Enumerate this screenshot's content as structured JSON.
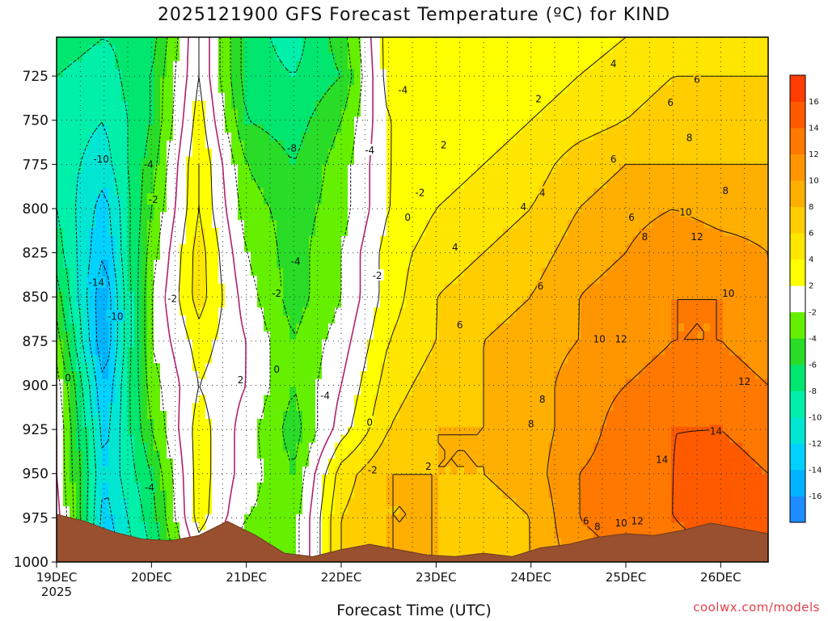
{
  "chart_data": {
    "type": "heatmap",
    "title": "2025121900 GFS Forecast Temperature (ºC) for KIND",
    "xlabel": "Forecast Time (UTC)",
    "ylabel": "",
    "x_ticks": [
      "19DEC",
      "20DEC",
      "21DEC",
      "22DEC",
      "23DEC",
      "24DEC",
      "25DEC",
      "26DEC"
    ],
    "x_tick_sublabel": "2025",
    "y_ticks": [
      725,
      750,
      775,
      800,
      825,
      850,
      875,
      900,
      925,
      950,
      975,
      1000
    ],
    "ylim": [
      1000,
      703
    ],
    "xlim": [
      0,
      7.5
    ],
    "grid": true,
    "colorbar": {
      "levels": [
        -18,
        -16,
        -14,
        -12,
        -10,
        -8,
        -6,
        -4,
        -2,
        2,
        4,
        6,
        8,
        10,
        12,
        14,
        16,
        18
      ],
      "labels": [
        "-16",
        "-14",
        "-12",
        "-10",
        "-8",
        "-6",
        "-4",
        "-2",
        "2",
        "4",
        "6",
        "8",
        "10",
        "12",
        "14",
        "16"
      ],
      "colors": [
        "#1e8cff",
        "#00b4ff",
        "#00d2ff",
        "#00e6d2",
        "#00f0aa",
        "#00e66e",
        "#28dc28",
        "#64f000",
        "#ffffff",
        "#ffff00",
        "#ffe600",
        "#ffcd00",
        "#ffaf00",
        "#ff9600",
        "#ff7800",
        "#ff5a00",
        "#ff3c00"
      ]
    },
    "time_axis": [
      0,
      0.5,
      1,
      1.5,
      2,
      2.5,
      3,
      3.5,
      4,
      4.5,
      5,
      5.5,
      6,
      6.5,
      7,
      7.5
    ],
    "pressure_levels": [
      1000,
      975,
      950,
      925,
      900,
      875,
      850,
      825,
      800,
      775,
      750,
      725,
      703
    ],
    "temperature": [
      [
        2,
        -14,
        -8,
        0,
        -4,
        -3,
        6,
        8,
        8,
        7,
        8,
        11,
        12,
        12,
        14,
        16
      ],
      [
        1,
        -13,
        -7,
        3,
        -2,
        -3,
        6,
        8,
        8,
        7,
        8,
        12,
        13,
        14,
        16,
        15
      ],
      [
        0,
        -12,
        -6,
        3,
        -1,
        -4,
        5,
        8,
        8,
        8,
        9,
        12,
        13,
        14,
        15,
        14
      ],
      [
        0,
        -13,
        -4,
        3,
        -1,
        -5,
        1,
        6,
        8,
        8,
        9,
        11,
        13,
        14,
        14,
        13
      ],
      [
        -1,
        -14,
        -3,
        2,
        0,
        -4,
        0,
        5,
        7,
        8,
        9,
        11,
        12,
        13,
        13,
        12
      ],
      [
        -3,
        -16,
        -2,
        3,
        0,
        -4,
        -1,
        4,
        6,
        8,
        9,
        10,
        11,
        12,
        12,
        11
      ],
      [
        -5,
        -16,
        -2,
        5,
        -1,
        -5,
        -2,
        3,
        6,
        7,
        8,
        10,
        11,
        12,
        12,
        10
      ],
      [
        -7,
        -14,
        -3,
        5,
        -2,
        -5,
        -2,
        3,
        5,
        6,
        7,
        9,
        10,
        12,
        11,
        10
      ],
      [
        -8,
        -13,
        -4,
        4,
        -3,
        -5,
        -3,
        2,
        4,
        5,
        6,
        8,
        9,
        10,
        9,
        9
      ],
      [
        -9,
        -11,
        -5,
        4,
        -4,
        -6,
        -3,
        2,
        3,
        4,
        5,
        7,
        8,
        8,
        8,
        8
      ],
      [
        -9,
        -10,
        -6,
        3,
        -6,
        -7,
        -4,
        2,
        3,
        3,
        4,
        5,
        6,
        7,
        7,
        7
      ],
      [
        -8,
        -9,
        -6,
        2,
        -7,
        -8,
        -6,
        3,
        2,
        3,
        3,
        4,
        5,
        6,
        6,
        6
      ],
      [
        -7,
        -8,
        -7,
        2,
        -7,
        -9,
        -5,
        3,
        2,
        2,
        3,
        3,
        4,
        5,
        5,
        5
      ]
    ],
    "surface_pressure": [
      973,
      977,
      983,
      987,
      988,
      985,
      977,
      985,
      995,
      997,
      993,
      990,
      993,
      996,
      997,
      995,
      997,
      992,
      990,
      986,
      984,
      985,
      982,
      978,
      981,
      984
    ],
    "contour_labels": [
      {
        "text": "-10",
        "t": 0.47,
        "p": 772
      },
      {
        "text": "-4",
        "t": 0.97,
        "p": 775
      },
      {
        "text": "-2",
        "t": 1.02,
        "p": 795
      },
      {
        "text": "-14",
        "t": 0.42,
        "p": 842
      },
      {
        "text": "-10",
        "t": 0.62,
        "p": 861
      },
      {
        "text": "0",
        "t": 0.12,
        "p": 896
      },
      {
        "text": "-2",
        "t": 1.22,
        "p": 851
      },
      {
        "text": "-4",
        "t": 0.98,
        "p": 958
      },
      {
        "text": "2",
        "t": 1.94,
        "p": 897
      },
      {
        "text": "-8",
        "t": 2.48,
        "p": 766
      },
      {
        "text": "-4",
        "t": 2.52,
        "p": 830
      },
      {
        "text": "-2",
        "t": 2.32,
        "p": 848
      },
      {
        "text": "0",
        "t": 2.32,
        "p": 891
      },
      {
        "text": "-4",
        "t": 2.83,
        "p": 906
      },
      {
        "text": "-4",
        "t": 3.3,
        "p": 767
      },
      {
        "text": "-2",
        "t": 3.38,
        "p": 838
      },
      {
        "text": "0",
        "t": 3.3,
        "p": 921
      },
      {
        "text": "-2",
        "t": 3.33,
        "p": 948
      },
      {
        "text": "-4",
        "t": 3.65,
        "p": 733
      },
      {
        "text": "-2",
        "t": 3.83,
        "p": 791
      },
      {
        "text": "0",
        "t": 3.7,
        "p": 805
      },
      {
        "text": "2",
        "t": 3.92,
        "p": 946
      },
      {
        "text": "2",
        "t": 4.08,
        "p": 764
      },
      {
        "text": "4",
        "t": 4.2,
        "p": 822
      },
      {
        "text": "6",
        "t": 4.25,
        "p": 866
      },
      {
        "text": "2",
        "t": 5.08,
        "p": 738
      },
      {
        "text": "4",
        "t": 4.92,
        "p": 799
      },
      {
        "text": "4",
        "t": 5.12,
        "p": 791
      },
      {
        "text": "6",
        "t": 5.1,
        "p": 844
      },
      {
        "text": "8",
        "t": 5.12,
        "p": 908
      },
      {
        "text": "8",
        "t": 5.0,
        "p": 922
      },
      {
        "text": "4",
        "t": 5.87,
        "p": 718
      },
      {
        "text": "6",
        "t": 5.87,
        "p": 772
      },
      {
        "text": "6",
        "t": 6.06,
        "p": 805
      },
      {
        "text": "8",
        "t": 6.2,
        "p": 816
      },
      {
        "text": "6",
        "t": 6.47,
        "p": 740
      },
      {
        "text": "8",
        "t": 6.67,
        "p": 760
      },
      {
        "text": "6",
        "t": 6.75,
        "p": 727
      },
      {
        "text": "8",
        "t": 7.05,
        "p": 790
      },
      {
        "text": "10",
        "t": 6.63,
        "p": 802
      },
      {
        "text": "12",
        "t": 6.75,
        "p": 816
      },
      {
        "text": "10",
        "t": 7.08,
        "p": 848
      },
      {
        "text": "10",
        "t": 5.72,
        "p": 874
      },
      {
        "text": "12",
        "t": 5.95,
        "p": 874
      },
      {
        "text": "12",
        "t": 7.25,
        "p": 898
      },
      {
        "text": "14",
        "t": 6.38,
        "p": 942
      },
      {
        "text": "14",
        "t": 6.95,
        "p": 926
      },
      {
        "text": "6",
        "t": 5.58,
        "p": 977
      },
      {
        "text": "8",
        "t": 5.7,
        "p": 980
      },
      {
        "text": "10",
        "t": 5.95,
        "p": 978
      },
      {
        "text": "12",
        "t": 6.12,
        "p": 977
      }
    ]
  },
  "credit": "coolwx.com/models"
}
